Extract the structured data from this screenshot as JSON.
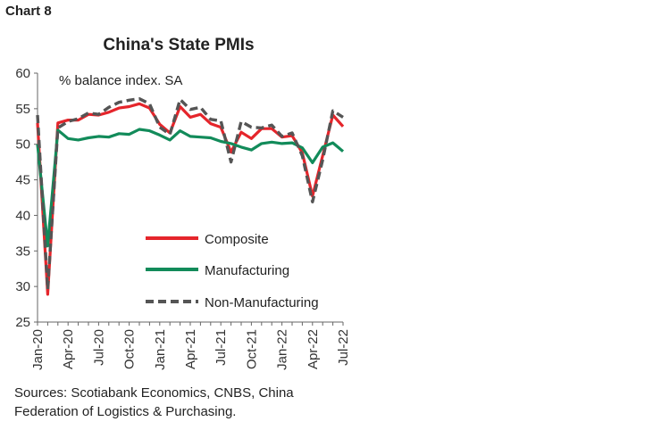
{
  "header": {
    "chart_label": "Chart 8"
  },
  "chart_data": {
    "type": "line",
    "title": "China's State PMIs",
    "unit_note": "% balance index. SA",
    "ylim": [
      25,
      60
    ],
    "yticks": [
      25,
      30,
      35,
      40,
      45,
      50,
      55,
      60
    ],
    "x_tick_labels": [
      "Jan-20",
      "Apr-20",
      "Jul-20",
      "Oct-20",
      "Jan-21",
      "Apr-21",
      "Jul-21",
      "Oct-21",
      "Jan-22",
      "Apr-22",
      "Jul-22"
    ],
    "x": [
      "Jan-20",
      "Feb-20",
      "Mar-20",
      "Apr-20",
      "May-20",
      "Jun-20",
      "Jul-20",
      "Aug-20",
      "Sep-20",
      "Oct-20",
      "Nov-20",
      "Dec-20",
      "Jan-21",
      "Feb-21",
      "Mar-21",
      "Apr-21",
      "May-21",
      "Jun-21",
      "Jul-21",
      "Aug-21",
      "Sep-21",
      "Oct-21",
      "Nov-21",
      "Dec-21",
      "Jan-22",
      "Feb-22",
      "Mar-22",
      "Apr-22",
      "May-22",
      "Jun-22",
      "Jul-22"
    ],
    "series": [
      {
        "name": "Composite",
        "color": "#e5252b",
        "dash": "solid",
        "values": [
          53.0,
          28.9,
          53.0,
          53.4,
          53.4,
          54.2,
          54.1,
          54.5,
          55.1,
          55.3,
          55.7,
          55.1,
          52.8,
          51.6,
          55.3,
          53.8,
          54.2,
          52.9,
          52.4,
          48.9,
          51.7,
          50.8,
          52.2,
          52.2,
          51.0,
          51.2,
          48.8,
          42.7,
          48.4,
          54.1,
          52.5
        ]
      },
      {
        "name": "Manufacturing",
        "color": "#128b5a",
        "dash": "solid",
        "values": [
          50.0,
          35.7,
          52.0,
          50.8,
          50.6,
          50.9,
          51.1,
          51.0,
          51.5,
          51.4,
          52.1,
          51.9,
          51.3,
          50.6,
          51.9,
          51.1,
          51.0,
          50.9,
          50.4,
          50.1,
          49.6,
          49.2,
          50.1,
          50.3,
          50.1,
          50.2,
          49.5,
          47.4,
          49.6,
          50.2,
          49.0
        ]
      },
      {
        "name": "Non-Manufacturing",
        "color": "#555555",
        "dash": "dashed",
        "values": [
          54.1,
          29.6,
          52.3,
          53.2,
          53.6,
          54.4,
          54.2,
          55.2,
          55.9,
          56.2,
          56.4,
          55.7,
          52.4,
          51.4,
          56.3,
          54.9,
          55.2,
          53.5,
          53.3,
          47.5,
          53.2,
          52.4,
          52.3,
          52.7,
          51.1,
          51.6,
          48.4,
          41.9,
          47.8,
          54.7,
          53.8
        ]
      }
    ],
    "legend_position": "center-left",
    "grid": false
  },
  "footer": {
    "source": "Sources: Scotiabank Economics, CNBS, China Federation of Logistics & Purchasing."
  }
}
